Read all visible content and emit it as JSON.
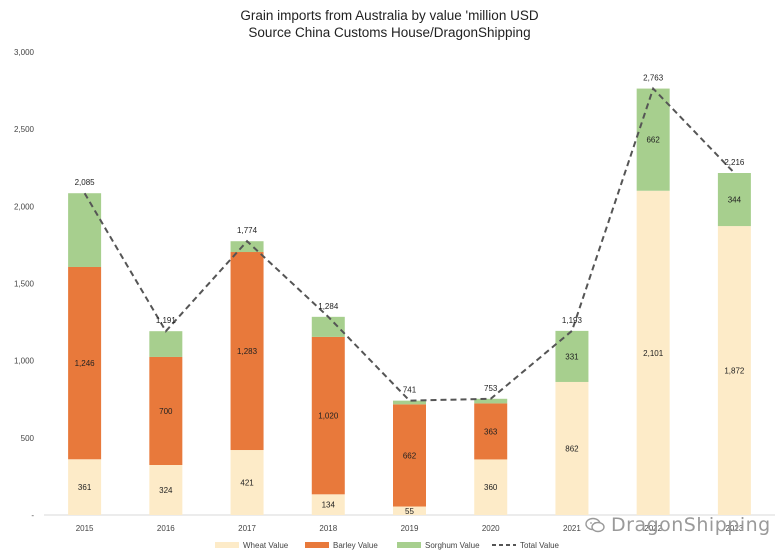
{
  "chart_data": {
    "type": "bar",
    "stacked": true,
    "title": "Grain imports from Australia by value 'million USD",
    "subtitle": "Source China Customs House/DragonShipping",
    "categories": [
      "2015",
      "2016",
      "2017",
      "2018",
      "2019",
      "2020",
      "2021",
      "2022",
      "2023"
    ],
    "ylim": [
      0,
      3000
    ],
    "yticks": [
      "-",
      "500",
      "1,000",
      "1,500",
      "2,000",
      "2,500",
      "3,000"
    ],
    "grid": false,
    "legend": "bottom",
    "series": [
      {
        "name": "Wheat Value",
        "color": "#fdebc8",
        "values": [
          361,
          324,
          421,
          134,
          55,
          360,
          862,
          2101,
          1872
        ],
        "labels": [
          "361",
          "324",
          "421",
          "134",
          "55",
          "360",
          "862",
          "2,101",
          "1,872"
        ]
      },
      {
        "name": "Barley Value",
        "color": "#e8793b",
        "values": [
          1246,
          700,
          1283,
          1020,
          662,
          363,
          0,
          0,
          0
        ],
        "labels": [
          "1,246",
          "700",
          "1,283",
          "1,020",
          "662",
          "363",
          "",
          "",
          ""
        ]
      },
      {
        "name": "Sorghum Value",
        "color": "#a7cf8e",
        "values": [
          478,
          167,
          70,
          130,
          24,
          30,
          331,
          662,
          344
        ],
        "labels": [
          "",
          "",
          "",
          "",
          "",
          "",
          "331",
          "662",
          "344"
        ]
      }
    ],
    "line": {
      "name": "Total Value",
      "color": "#555555",
      "style": "dashed",
      "values": [
        2085,
        1191,
        1774,
        1284,
        741,
        753,
        1193,
        2763,
        2216
      ],
      "labels": [
        "2,085",
        "1,191",
        "1,774",
        "1,284",
        "741",
        "753",
        "1,193",
        "2,763",
        "2,216"
      ]
    }
  },
  "watermark": {
    "text": "DragonShipping"
  }
}
